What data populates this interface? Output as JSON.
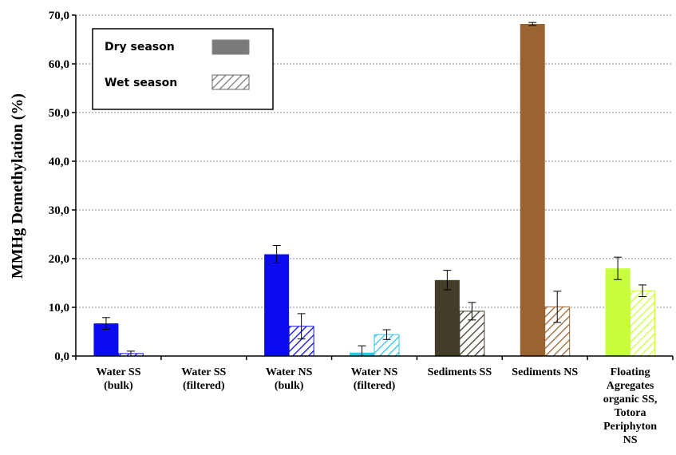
{
  "chart_data": {
    "type": "bar",
    "ylabel": "MMHg Demethylation (%)",
    "xlabel": "",
    "ylim": [
      0,
      70
    ],
    "yticks": [
      "0,0",
      "10,0",
      "20,0",
      "30,0",
      "40,0",
      "50,0",
      "60,0",
      "70,0"
    ],
    "grid": "horizontal dotted",
    "legend_position": "top-left",
    "categories": [
      [
        "Water SS",
        "(bulk)"
      ],
      [
        "Water SS",
        "(filtered)"
      ],
      [
        "Water NS",
        "(bulk)"
      ],
      [
        "Water NS",
        "(filtered)"
      ],
      [
        "Sediments SS"
      ],
      [
        "Sediments NS"
      ],
      [
        "Floating",
        "Agregates",
        "organic SS,",
        "Totora",
        "Periphyton",
        "NS"
      ]
    ],
    "colors": [
      "#0b0bf0",
      null,
      "#0b0bf0",
      "#2ec4e8",
      "#433d2a",
      "#9a6432",
      "#c8ff3c"
    ],
    "legend_colors": {
      "dry": "#7a7a7a",
      "wet": "#7a7a7a"
    },
    "series": [
      {
        "name": "Dry season",
        "pattern": "solid",
        "values": [
          6.7,
          null,
          20.9,
          0.7,
          15.6,
          68.2,
          18.0
        ],
        "errors": [
          1.2,
          null,
          1.8,
          1.4,
          2.0,
          0.3,
          2.3
        ]
      },
      {
        "name": "Wet season",
        "pattern": "hatched",
        "values": [
          0.5,
          null,
          6.1,
          4.4,
          9.2,
          10.1,
          13.4
        ],
        "errors": [
          0.5,
          null,
          2.6,
          1.0,
          1.8,
          3.2,
          1.2
        ]
      }
    ]
  }
}
